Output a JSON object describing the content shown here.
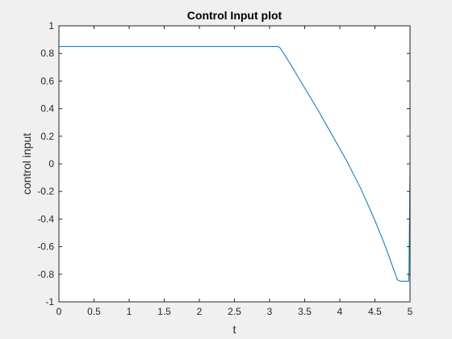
{
  "chart_data": {
    "type": "line",
    "title": "Control Input plot",
    "xlabel": "t",
    "ylabel": "control input",
    "xlim": [
      0,
      5
    ],
    "ylim": [
      -1,
      1
    ],
    "xticks": [
      0,
      0.5,
      1,
      1.5,
      2,
      2.5,
      3,
      3.5,
      4,
      4.5,
      5
    ],
    "xtick_labels": [
      "0",
      "0.5",
      "1",
      "1.5",
      "2",
      "2.5",
      "3",
      "3.5",
      "4",
      "4.5",
      "5"
    ],
    "yticks": [
      -1,
      -0.8,
      -0.6,
      -0.4,
      -0.2,
      0,
      0.2,
      0.4,
      0.6,
      0.8,
      1
    ],
    "ytick_labels": [
      "-1",
      "-0.8",
      "-0.6",
      "-0.4",
      "-0.2",
      "0",
      "0.2",
      "0.4",
      "0.6",
      "0.8",
      "1"
    ],
    "grid": false,
    "series": [
      {
        "color": "#0072BD",
        "x": [
          0,
          3.12,
          3.15,
          3.3,
          3.5,
          3.7,
          3.9,
          4.1,
          4.3,
          4.5,
          4.65,
          4.75,
          4.82,
          4.86,
          4.98,
          4.985,
          5.0
        ],
        "y": [
          0.85,
          0.85,
          0.84,
          0.72,
          0.55,
          0.38,
          0.2,
          0.02,
          -0.18,
          -0.41,
          -0.6,
          -0.74,
          -0.84,
          -0.85,
          -0.85,
          -0.8,
          0.0
        ]
      }
    ]
  }
}
